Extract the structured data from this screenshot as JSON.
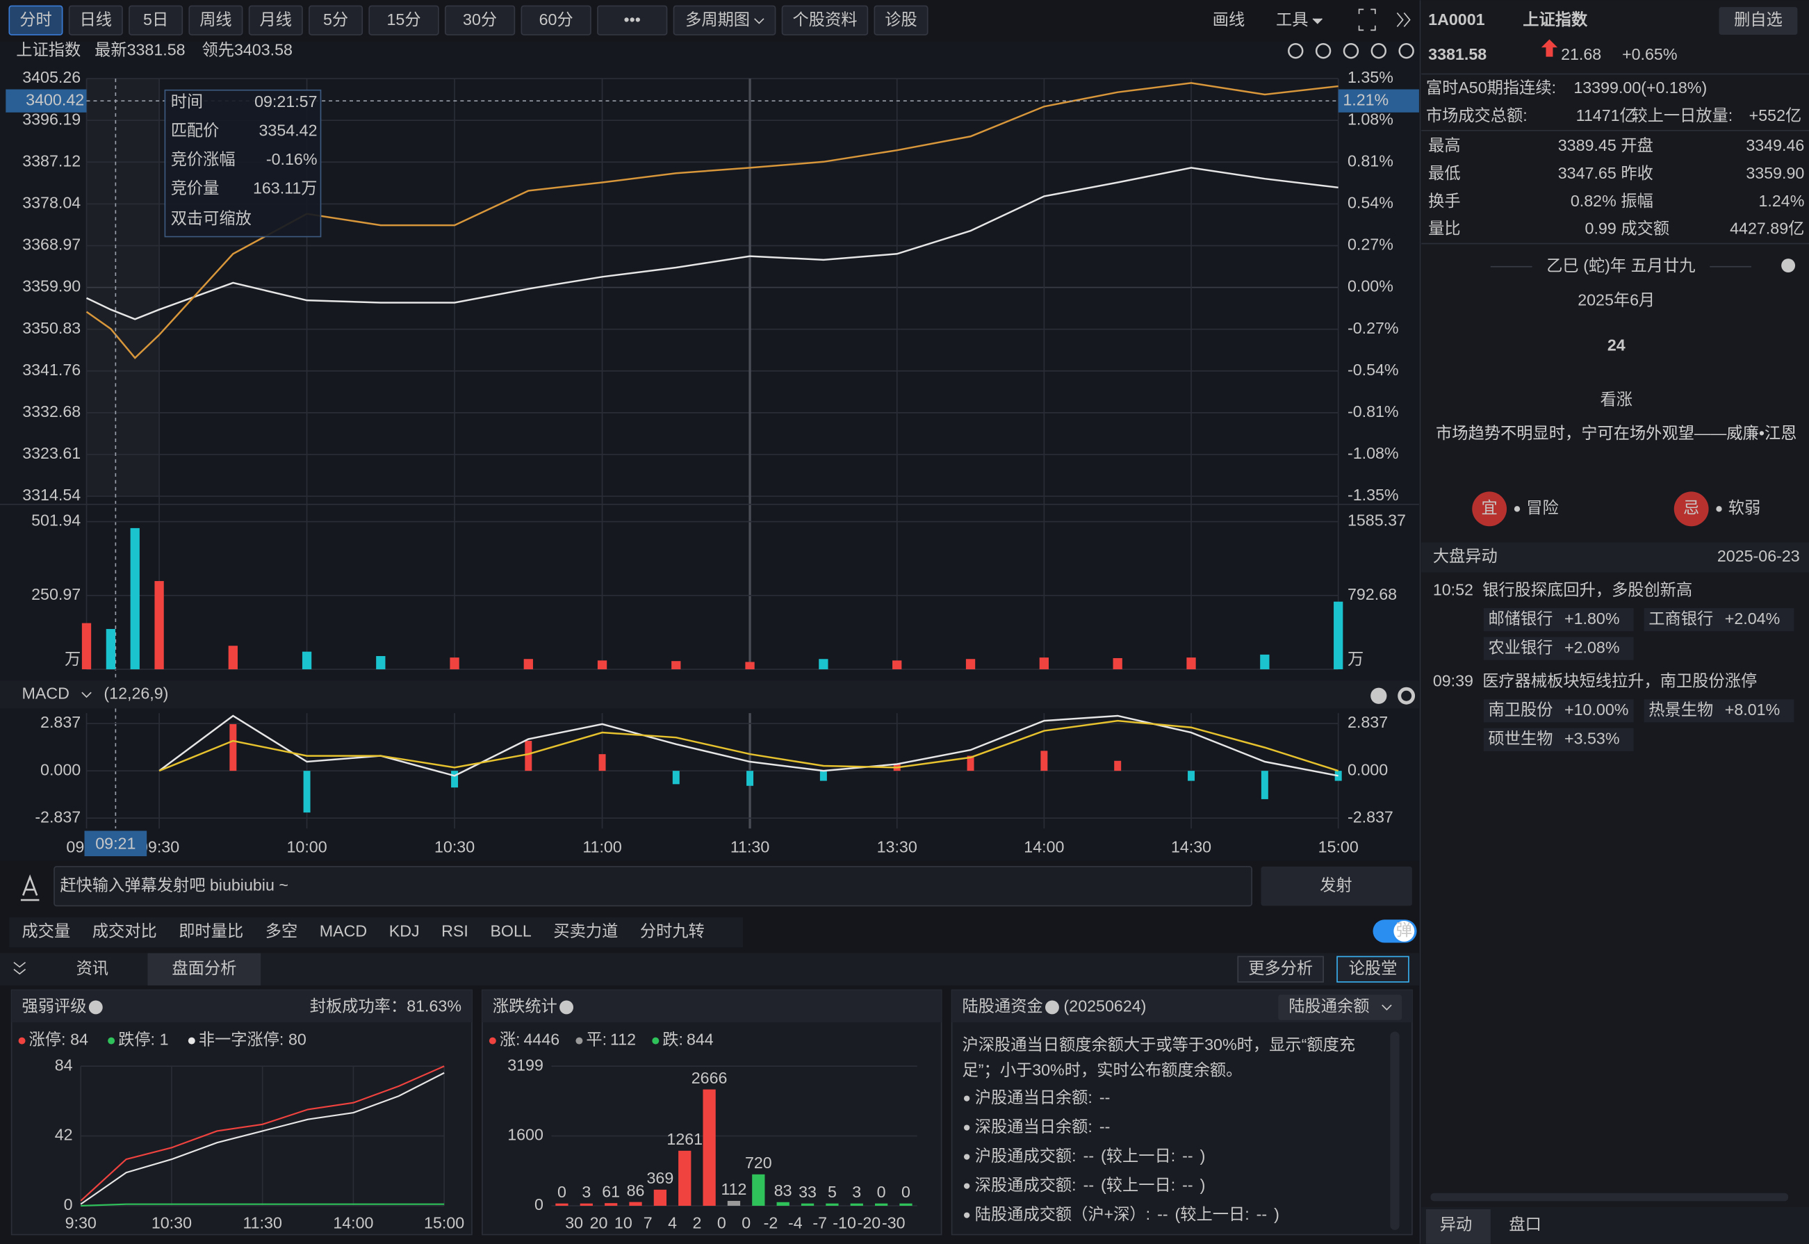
{
  "toolbar": {
    "tabs": [
      "分时",
      "日线",
      "5日",
      "周线",
      "月线",
      "5分",
      "15分",
      "30分",
      "60分",
      "•••",
      "多周期图",
      "个股资料",
      "诊股"
    ],
    "active": 0,
    "tools": [
      "画线",
      "工具"
    ]
  },
  "header": {
    "name": "上证指数",
    "latest": "最新3381.58",
    "lead": "领先3403.58"
  },
  "chart_data": [
    {
      "type": "line",
      "x": [
        "09:15",
        "09:20",
        "09:25",
        "09:30",
        "09:45",
        "10:00",
        "10:15",
        "10:30",
        "10:45",
        "11:00",
        "11:15",
        "11:30",
        "13:15",
        "13:30",
        "13:45",
        "14:00",
        "14:15",
        "14:30",
        "14:45",
        "15:00"
      ],
      "series": [
        {
          "color": "#e6e6e6",
          "values": [
            3357.6,
            3355.1,
            3353.0,
            3355.1,
            3360.9,
            3357.1,
            3356.6,
            3356.6,
            3359.6,
            3362.2,
            3364.2,
            3366.7,
            3365.9,
            3367.2,
            3372.2,
            3379.7,
            3382.7,
            3385.9,
            3383.5,
            3381.6
          ]
        },
        {
          "color": "#d8973a",
          "values": [
            3354.6,
            3350.9,
            3344.6,
            3349.6,
            3367.2,
            3375.9,
            3373.4,
            3373.4,
            3380.9,
            3382.7,
            3384.7,
            3385.9,
            3387.2,
            3389.7,
            3392.7,
            3399.2,
            3402.3,
            3404.3,
            3401.8,
            3403.6
          ]
        }
      ],
      "ylim": [
        3314.54,
        3405.26
      ],
      "yticks": [
        3405.26,
        3396.19,
        3387.12,
        3378.04,
        3368.97,
        {
          "value": 3359.9,
          "label": "3359.90"
        },
        3350.83,
        3341.76,
        3332.68,
        3323.61,
        3314.54
      ],
      "y2lim": [
        -1.35,
        1.35
      ],
      "y2ticks": [
        {
          "value": 1.35,
          "label": "1.35%"
        },
        {
          "value": 1.08,
          "label": "1.08%"
        },
        {
          "value": 0.81,
          "label": "0.81%"
        },
        {
          "value": 0.54,
          "label": "0.54%"
        },
        {
          "value": 0.27,
          "label": "0.27%"
        },
        {
          "value": 0,
          "label": "0.00%"
        },
        {
          "value": -0.27,
          "label": "-0.27%"
        },
        {
          "value": -0.54,
          "label": "-0.54%"
        },
        {
          "value": -0.81,
          "label": "-0.81%"
        },
        {
          "value": -1.08,
          "label": "-1.08%"
        },
        {
          "value": -1.35,
          "label": "-1.35%"
        }
      ],
      "xticks": [
        "09:15",
        "09:30",
        "10:00",
        "10:30",
        "11:00",
        "11:30",
        "13:30",
        "14:00",
        "14:30",
        "15:00"
      ],
      "grid": true,
      "crosshair": {
        "x": "09:21",
        "y": 3400.42,
        "y2": {
          "value": 1.21,
          "label": "1.21%"
        }
      },
      "tooltip": {
        "rows": [
          {
            "label": "时间",
            "value": "09:21:57",
            "color": "#e6e6e6"
          },
          {
            "label": "匹配价",
            "value": 3354.42,
            "color": "#2fc25b"
          },
          {
            "label": "竞价涨幅",
            "value": "-0.16%",
            "color": "#2fc25b"
          },
          {
            "label": "竞价量",
            "value": "163.11万",
            "color": "#3ab0f0"
          }
        ],
        "hint": "双击可缩放"
      }
    },
    {
      "type": "bar",
      "x": [
        "09:15",
        "09:20",
        "09:25",
        "09:30",
        "09:45",
        "10:00",
        "10:15",
        "10:30",
        "10:45",
        "11:00",
        "11:15",
        "11:30",
        "13:15",
        "13:30",
        "13:45",
        "14:00",
        "14:15",
        "14:30",
        "14:45",
        "15:00"
      ],
      "values": [
        157,
        137,
        480,
        300,
        80,
        60,
        45,
        40,
        35,
        30,
        28,
        25,
        35,
        30,
        35,
        40,
        38,
        40,
        50,
        230
      ],
      "ylim": [
        0,
        541.2
      ],
      "yticks": [
        501.94,
        250.97,
        {
          "value": 0,
          "label": "万"
        }
      ],
      "y2lim": [
        0,
        1709.3
      ],
      "y2ticks": [
        1585.37,
        792.68,
        {
          "value": 0,
          "label": "万"
        }
      ],
      "up_color": "#f0433f",
      "down_color": "#1bc3cf"
    },
    {
      "type": "macd",
      "title": "MACD",
      "params": "(12,26,9)",
      "x": [
        "09:15",
        "09:20",
        "09:25",
        "09:30",
        "09:45",
        "10:00",
        "10:15",
        "10:30",
        "10:45",
        "11:00",
        "11:15",
        "11:30",
        "13:15",
        "13:30",
        "13:45",
        "14:00",
        "14:15",
        "14:30",
        "14:45",
        "15:00"
      ],
      "series": [
        {
          "color": "#e6e6e6",
          "values": [
            null,
            null,
            null,
            0,
            3.3,
            0.55,
            0.9,
            -0.3,
            1.9,
            2.8,
            1.6,
            0.55,
            0,
            0.4,
            1.25,
            3.0,
            3.3,
            2.3,
            0.55,
            -0.3
          ]
        },
        {
          "color": "#e6c22e",
          "values": [
            null,
            null,
            null,
            0,
            1.8,
            0.9,
            0.9,
            0.2,
            1.0,
            2.3,
            2.0,
            1.0,
            0.3,
            0.2,
            0.8,
            2.4,
            3.0,
            2.6,
            1.4,
            0.0
          ]
        }
      ],
      "histogram": [
        null,
        null,
        null,
        0,
        2.8,
        -2.5,
        0,
        -1.0,
        1.8,
        1.0,
        -0.8,
        -0.9,
        -0.6,
        0.4,
        0.9,
        1.2,
        0.6,
        -0.6,
        -1.7,
        -0.6
      ],
      "ylim": [
        -3.46,
        3.46
      ],
      "yticks": [
        2.837,
        {
          "value": 0,
          "label": "0.000"
        },
        -2.837
      ],
      "y2ticks": [
        2.837,
        {
          "value": 0,
          "label": "0.000"
        },
        -2.837
      ],
      "up_color": "#f0433f",
      "down_color": "#1bc3cf"
    },
    {
      "type": "line",
      "title": "强弱评级",
      "subtitle": "封板成功率：81.63%",
      "categories": [
        "9:30",
        null,
        "10:30",
        null,
        "11:30",
        null,
        "14:00",
        null,
        "15:00"
      ],
      "series": [
        {
          "name": "涨停:",
          "total": 84,
          "color": "#f0433f",
          "values": [
            3,
            28,
            35,
            45,
            49,
            58,
            62,
            72,
            84
          ]
        },
        {
          "name": "跌停:",
          "total": 1,
          "color": "#2fc25b",
          "values": [
            0,
            1,
            1,
            1,
            1,
            1,
            1,
            1,
            1
          ]
        },
        {
          "name": "非一字涨停:",
          "total": 80,
          "color": "#e6e6e6",
          "values": [
            1,
            20,
            28,
            38,
            45,
            52,
            56,
            66,
            80
          ]
        }
      ],
      "ylim": [
        0,
        84
      ],
      "yticks": [
        0,
        42,
        84
      ]
    },
    {
      "type": "bar",
      "title": "涨跌统计",
      "summary": [
        {
          "name": "涨:",
          "value": 4446,
          "color": "#f0433f"
        },
        {
          "name": "平:",
          "value": 112,
          "color": "#9a9a9a"
        },
        {
          "name": "跌:",
          "value": 844,
          "color": "#2fc25b"
        }
      ],
      "values": [
        0,
        3,
        61,
        86,
        369,
        1261,
        2666,
        112,
        720,
        83,
        33,
        5,
        3,
        0,
        0
      ],
      "colors": [
        "#f0433f",
        "#f0433f",
        "#f0433f",
        "#f0433f",
        "#f0433f",
        "#f0433f",
        "#f0433f",
        "#9a9a9a",
        "#2fc25b",
        "#2fc25b",
        "#2fc25b",
        "#2fc25b",
        "#2fc25b",
        "#2fc25b",
        "#2fc25b"
      ],
      "edge_labels": [
        "30",
        "20",
        "10",
        "7",
        "4",
        "2",
        "0",
        "0",
        "-2",
        "-4",
        "-7",
        "-10",
        "-20",
        "-30"
      ],
      "ylim": [
        0,
        3199
      ],
      "yticks": [
        0,
        1600,
        3199
      ]
    }
  ],
  "danmaku": {
    "placeholder": "赶快输入弹幕发射吧 biubiubiu ~",
    "button": "发射",
    "toggle": "弹"
  },
  "indicators": {
    "tabs": [
      "成交量",
      "成交对比",
      "即时量比",
      "多空",
      "MACD",
      "KDJ",
      "RSI",
      "BOLL",
      "买卖力道",
      "分时九转"
    ],
    "active": [
      0,
      4
    ]
  },
  "tabs": {
    "items": [
      "资讯",
      "盘面分析"
    ],
    "active": 1,
    "buttons": [
      "更多分析",
      "论股堂"
    ]
  },
  "hsgt": {
    "title": "陆股通资金",
    "date": "(20250624)",
    "dropdown": "陆股通余额",
    "note": "沪深股通当日额度余额大于或等于30%时，显示“额度充足”；小于30%时，实时公布额度余额。",
    "rows": [
      {
        "label": "沪股通当日余额:",
        "value": "--"
      },
      {
        "label": "深股通当日余额:",
        "value": "--"
      },
      {
        "label": "沪股通成交额:",
        "value": "--",
        "compare_label": "(较上一日:",
        "compare_value": "--",
        "compare_end": ")"
      },
      {
        "label": "深股通成交额:",
        "value": "--",
        "compare_label": "(较上一日:",
        "compare_value": "--",
        "compare_end": ")"
      },
      {
        "label": "陆股通成交额（沪+深）:",
        "value": "--",
        "compare_label": "(较上一日:",
        "compare_value": "--",
        "compare_end": ")"
      }
    ]
  },
  "quote": {
    "code": "1A0001",
    "name": "上证指数",
    "button": "删自选",
    "price": "3381.58",
    "change": "21.68",
    "pct": "+0.65%",
    "a50_label": "富时A50期指连续:",
    "a50_value": "13399.00(+0.18%)",
    "turnover_label": "市场成交总额:",
    "turnover_value": "11471亿",
    "volume_label": "较上一日放量:",
    "volume_value": "+552亿",
    "stats": [
      [
        {
          "label": "最高",
          "value": "3389.45",
          "color": "#f0433f"
        },
        {
          "label": "开盘",
          "value": "3349.46",
          "color": "#2fc25b"
        }
      ],
      [
        {
          "label": "最低",
          "value": "3347.65",
          "color": "#2fc25b"
        },
        {
          "label": "昨收",
          "value": "3359.90",
          "color": "#e6e6e6"
        }
      ],
      [
        {
          "label": "换手",
          "value": "0.82%",
          "color": "#3ab0f0"
        },
        {
          "label": "振幅",
          "value": "1.24%",
          "color": "#3ab0f0"
        }
      ],
      [
        {
          "label": "量比",
          "value": "0.99",
          "color": "#3ab0f0"
        },
        {
          "label": "成交额",
          "value": "4427.89亿",
          "color": "#3ab0f0"
        }
      ]
    ],
    "lunar": "乙巳 (蛇)年 五月廿九",
    "month": "2025年6月",
    "day": "24",
    "outlook": "看涨",
    "quote_text": "市场趋势不明显时，宁可在场外观望——威廉•江恩",
    "yi": "宜",
    "yi_text": "冒险",
    "ji": "忌",
    "ji_text": "软弱",
    "events_title": "大盘异动",
    "events_date": "2025-06-23",
    "events": [
      {
        "time": "10:52",
        "text": "银行股探底回升，多股创新高",
        "stocks": [
          {
            "name": "邮储银行",
            "change": "+1.80%"
          },
          {
            "name": "工商银行",
            "change": "+2.04%"
          },
          {
            "name": "农业银行",
            "change": "+2.08%"
          }
        ]
      },
      {
        "time": "09:39",
        "text": "医疗器械板块短线拉升，南卫股份涨停",
        "stocks": [
          {
            "name": "南卫股份",
            "change": "+10.00%"
          },
          {
            "name": "热景生物",
            "change": "+8.01%"
          },
          {
            "name": "硕世生物",
            "change": "+3.53%"
          }
        ]
      }
    ],
    "bottom_tabs": [
      "异动",
      "盘口"
    ]
  }
}
